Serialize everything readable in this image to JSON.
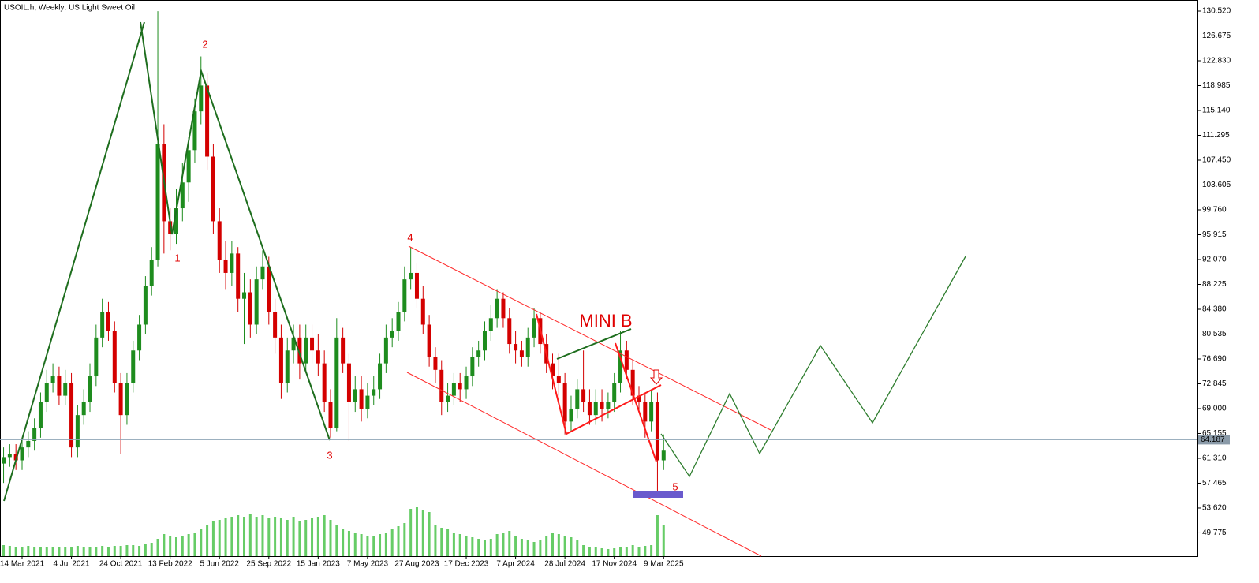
{
  "chart_data": {
    "type": "candlestick",
    "title": "USOIL.h, Weekly:  US Light Sweet Oil",
    "annotations": [
      "1",
      "2",
      "3",
      "4",
      "5",
      "MINI B"
    ],
    "xlim": [
      -0.58,
      193.54
    ],
    "xticks": [
      {
        "value": 3,
        "label": "14 Mar 2021"
      },
      {
        "value": 11,
        "label": "4 Jul 2021"
      },
      {
        "value": 19,
        "label": "24 Oct 2021"
      },
      {
        "value": 27,
        "label": "13 Feb 2022"
      },
      {
        "value": 35,
        "label": "5 Jun 2022"
      },
      {
        "value": 43,
        "label": "25 Sep 2022"
      },
      {
        "value": 51,
        "label": "15 Jan 2023"
      },
      {
        "value": 59,
        "label": "7 May 2023"
      },
      {
        "value": 67,
        "label": "27 Aug 2023"
      },
      {
        "value": 75,
        "label": "17 Dec 2023"
      },
      {
        "value": 83,
        "label": "7 Apr 2024"
      },
      {
        "value": 91,
        "label": "28 Jul 2024"
      },
      {
        "value": 99,
        "label": "17 Nov 2024"
      },
      {
        "value": 107,
        "label": "9 Mar 2025"
      }
    ],
    "ylim": [
      46.17,
      131.62
    ],
    "yticks": [
      {
        "value": 130.52,
        "label": "130.520"
      },
      {
        "value": 126.675,
        "label": "126.675"
      },
      {
        "value": 122.83,
        "label": "122.830"
      },
      {
        "value": 118.985,
        "label": "118.985"
      },
      {
        "value": 115.14,
        "label": "115.140"
      },
      {
        "value": 111.295,
        "label": "111.295"
      },
      {
        "value": 107.45,
        "label": "107.450"
      },
      {
        "value": 103.605,
        "label": "103.605"
      },
      {
        "value": 99.76,
        "label": "99.760"
      },
      {
        "value": 95.915,
        "label": "95.915"
      },
      {
        "value": 92.07,
        "label": "92.070"
      },
      {
        "value": 88.225,
        "label": "88.225"
      },
      {
        "value": 84.38,
        "label": "84.380"
      },
      {
        "value": 80.535,
        "label": "80.535"
      },
      {
        "value": 76.69,
        "label": "76.690"
      },
      {
        "value": 72.845,
        "label": "72.845"
      },
      {
        "value": 69.0,
        "label": "69.000"
      },
      {
        "value": 65.155,
        "label": "65.155"
      },
      {
        "value": 61.31,
        "label": "61.310"
      },
      {
        "value": 57.465,
        "label": "57.465"
      },
      {
        "value": 53.62,
        "label": "53.620"
      },
      {
        "value": 49.775,
        "label": "49.775"
      }
    ],
    "current_price": 64.187,
    "up_color": "#1e8c1e",
    "down_color": "#d40000",
    "volume_color": "#66cc66",
    "volume_lim": [
      0,
      100
    ],
    "open": [
      60.5,
      61.5,
      62,
      61,
      63,
      64,
      66,
      70,
      73,
      74,
      71,
      73,
      63,
      68,
      70,
      74,
      80,
      84,
      81,
      73,
      68,
      73,
      78,
      82,
      88,
      92,
      110,
      98,
      96,
      100,
      104,
      109,
      115,
      119,
      108,
      98,
      92,
      90,
      93,
      86,
      87,
      82,
      89,
      91,
      84,
      80,
      73,
      78,
      80,
      76,
      80,
      78,
      76,
      70,
      66,
      80,
      76,
      70,
      72,
      69,
      71,
      72,
      76,
      80,
      81,
      84,
      89,
      90,
      86,
      82,
      77,
      75,
      70,
      71,
      73,
      72,
      74,
      77,
      78,
      81,
      83,
      86,
      83,
      79,
      78,
      77,
      80,
      83,
      79,
      76,
      74,
      73,
      67,
      69,
      72,
      70,
      68,
      70,
      69,
      70,
      73,
      78,
      75,
      71,
      70,
      67,
      70,
      61
    ],
    "high": [
      63,
      63.5,
      63.5,
      64.5,
      65.5,
      67.5,
      71.5,
      75,
      76,
      75.5,
      75,
      74.5,
      69.5,
      72,
      76,
      82,
      86,
      85.5,
      82.5,
      74.5,
      74.5,
      79.5,
      83.5,
      89.5,
      94,
      130.5,
      113,
      100,
      103,
      107,
      111,
      117,
      123.5,
      121,
      110,
      100,
      95,
      95,
      94,
      90,
      89,
      91,
      93.5,
      92.5,
      86,
      82,
      80,
      82,
      82,
      82,
      82,
      80.5,
      78,
      72,
      83,
      81.5,
      77.5,
      74,
      74,
      73,
      74,
      77.5,
      82,
      83,
      85.5,
      91,
      94,
      91.5,
      88,
      83.5,
      78.5,
      76.5,
      73,
      74.5,
      74.5,
      75.5,
      78.5,
      79.5,
      82.5,
      85,
      87.5,
      87,
      84.5,
      81,
      79.5,
      81.5,
      84.5,
      84,
      80.5,
      77.5,
      77.5,
      74.5,
      71,
      73.5,
      78,
      72,
      72,
      72,
      71.5,
      74.5,
      81,
      79.5,
      76.5,
      72.5,
      71.5,
      72,
      71.5,
      65
    ],
    "low": [
      57.5,
      60,
      59.5,
      59.5,
      61.5,
      62.5,
      64.5,
      68.5,
      71.5,
      69.5,
      69.5,
      61.5,
      61.5,
      66.5,
      68.5,
      72.5,
      78.5,
      79.5,
      71.5,
      62,
      66.5,
      71.5,
      76.5,
      80.5,
      86.5,
      91,
      93,
      93.5,
      94.5,
      98,
      101,
      107,
      113,
      106,
      96,
      90,
      87.5,
      88,
      84,
      79,
      80,
      80.5,
      87.5,
      82,
      77.5,
      70.5,
      71.5,
      76,
      73.5,
      74.5,
      76,
      74,
      68.5,
      64.5,
      65.5,
      74.5,
      64,
      68.5,
      67,
      67.5,
      69.5,
      70.5,
      74.5,
      78.5,
      79.5,
      82.5,
      87.5,
      84.5,
      80.5,
      75.5,
      73,
      68,
      68.5,
      69.5,
      70,
      70.5,
      72.5,
      75.5,
      76.5,
      79.5,
      81.5,
      81.5,
      77.5,
      76,
      75.5,
      75.5,
      78.5,
      77.5,
      74.5,
      72,
      71,
      65,
      65.5,
      67.5,
      68.5,
      66.5,
      66.5,
      67,
      67.5,
      68.5,
      71.5,
      73.5,
      69.5,
      68.5,
      64.5,
      65.5,
      55.5,
      59.5
    ],
    "close": [
      61.5,
      62,
      61,
      63,
      64,
      66,
      70,
      73,
      74,
      71,
      73,
      63,
      68,
      70,
      74,
      80,
      84,
      81,
      73,
      68,
      73,
      78,
      82,
      88,
      92,
      110,
      98,
      96,
      100,
      104,
      109,
      115,
      119,
      108,
      98,
      92,
      90,
      93,
      86,
      87,
      82,
      89,
      91,
      84,
      80,
      73,
      78,
      80,
      76,
      80,
      78,
      76,
      70,
      66,
      80,
      76,
      70,
      72,
      69,
      71,
      72,
      76,
      80,
      81,
      84,
      89,
      90,
      86,
      82,
      77,
      75,
      70,
      71,
      73,
      72,
      74,
      77,
      78,
      81,
      83,
      86,
      83,
      79,
      78,
      77,
      80,
      83,
      79,
      76,
      74,
      73,
      67,
      69,
      72,
      70,
      68,
      70,
      69,
      70,
      73,
      78,
      75,
      71,
      70,
      67,
      70,
      61,
      62.5
    ],
    "volume": [
      14,
      13,
      12,
      12,
      13,
      12,
      12,
      11,
      12,
      12,
      11,
      12,
      13,
      11,
      11,
      12,
      13,
      12,
      13,
      13,
      14,
      14,
      13,
      15,
      17,
      22,
      28,
      26,
      24,
      26,
      28,
      30,
      34,
      40,
      44,
      46,
      48,
      50,
      52,
      50,
      54,
      50,
      52,
      48,
      50,
      48,
      46,
      50,
      44,
      46,
      48,
      50,
      52,
      46,
      40,
      34,
      32,
      30,
      28,
      26,
      26,
      28,
      30,
      34,
      38,
      42,
      60,
      62,
      58,
      56,
      40,
      36,
      34,
      30,
      28,
      26,
      24,
      22,
      20,
      22,
      28,
      30,
      32,
      26,
      22,
      20,
      18,
      20,
      26,
      30,
      28,
      26,
      24,
      20,
      14,
      12,
      12,
      10,
      9,
      10,
      11,
      12,
      14,
      12,
      13,
      14,
      52,
      40
    ]
  }
}
